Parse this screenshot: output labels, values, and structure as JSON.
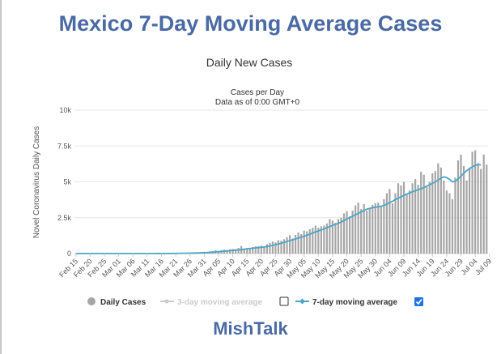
{
  "page": {
    "title": "Mexico 7-Day Moving Average Cases",
    "footer": "MishTalk"
  },
  "colors": {
    "title": "#4a6aa5",
    "bars": "#a6a6a6",
    "line_7day": "#4aa5c8",
    "line_3day": "#cccccc",
    "grid": "#e6e6e6"
  },
  "chart_data": {
    "type": "bar",
    "title": "Daily New Cases",
    "subtitle": "Cases per Day",
    "note": "Data as of 0:00 GMT+0",
    "ylabel": "Novel Coronavirus Daily Cases",
    "ylim": [
      0,
      10000
    ],
    "yticks": [
      0,
      2500,
      5000,
      7500,
      10000
    ],
    "ytick_labels": [
      "0",
      "2.5k",
      "5k",
      "7.5k",
      "10k"
    ],
    "grid": true,
    "legend_position": "bottom",
    "xtick_labels": [
      "Feb 15",
      "Feb 20",
      "Feb 25",
      "Mar 01",
      "Mar 06",
      "Mar 11",
      "Mar 16",
      "Mar 21",
      "Mar 26",
      "Mar 31",
      "Apr 05",
      "Apr 10",
      "Apr 15",
      "Apr 20",
      "Apr 25",
      "Apr 30",
      "May 05",
      "May 10",
      "May 15",
      "May 20",
      "May 25",
      "May 30",
      "Jun 04",
      "Jun 09",
      "Jun 14",
      "Jun 19",
      "Jun 24",
      "Jun 29",
      "Jul 04",
      "Jul 09"
    ],
    "x_start": "Feb 15",
    "x_end": "Jul 12",
    "legend": [
      {
        "label": "Daily Cases",
        "active": true
      },
      {
        "label": "3-day moving average",
        "active": false
      },
      {
        "label": "7-day moving average",
        "active": true
      }
    ],
    "series": [
      {
        "name": "Daily Cases",
        "type": "bar",
        "values": [
          0,
          0,
          0,
          0,
          0,
          0,
          0,
          0,
          0,
          0,
          0,
          0,
          0,
          0,
          0,
          1,
          0,
          1,
          0,
          1,
          0,
          0,
          0,
          0,
          1,
          2,
          1,
          0,
          2,
          5,
          3,
          7,
          12,
          15,
          12,
          26,
          29,
          37,
          29,
          44,
          48,
          52,
          66,
          71,
          88,
          120,
          108,
          155,
          170,
          240,
          180,
          243,
          280,
          243,
          300,
          320,
          310,
          396,
          520,
          350,
          380,
          360,
          450,
          500,
          510,
          560,
          500,
          660,
          750,
          840,
          780,
          930,
          900,
          1000,
          1140,
          1280,
          1050,
          1300,
          1470,
          1360,
          1600,
          1550,
          1700,
          1800,
          1950,
          1800,
          1900,
          1950,
          2100,
          2400,
          2300,
          2150,
          2400,
          2500,
          2800,
          2950,
          2600,
          3000,
          3350,
          3550,
          3100,
          3450,
          3000,
          3150,
          3400,
          3500,
          3550,
          3300,
          3800,
          4200,
          4500,
          3500,
          4200,
          4900,
          4750,
          5000,
          4150,
          4400,
          4900,
          5200,
          4800,
          5700,
          5500,
          4650,
          5000,
          5600,
          5750,
          6300,
          6000,
          5100,
          4400,
          4200,
          3800,
          5300,
          6500,
          6900,
          6100,
          5100,
          6000,
          7100,
          7200,
          6300,
          5900,
          6900,
          6200
        ]
      },
      {
        "name": "7-day moving average",
        "type": "line",
        "values": [
          0,
          0,
          0,
          0,
          0,
          0,
          0,
          0,
          0,
          0,
          0,
          0,
          0,
          0,
          0,
          0,
          0,
          0,
          0,
          0,
          0,
          0,
          0,
          0,
          0,
          1,
          1,
          1,
          1,
          2,
          3,
          4,
          5,
          7,
          9,
          12,
          15,
          19,
          23,
          27,
          30,
          35,
          40,
          45,
          52,
          59,
          69,
          80,
          93,
          110,
          130,
          146,
          163,
          181,
          199,
          216,
          233,
          250,
          272,
          300,
          330,
          355,
          375,
          395,
          415,
          435,
          460,
          490,
          530,
          570,
          620,
          670,
          720,
          780,
          840,
          900,
          960,
          1020,
          1080,
          1140,
          1200,
          1280,
          1350,
          1430,
          1510,
          1580,
          1650,
          1720,
          1800,
          1880,
          1960,
          2030,
          2110,
          2200,
          2300,
          2420,
          2500,
          2600,
          2700,
          2800,
          2900,
          3000,
          3100,
          3150,
          3200,
          3230,
          3260,
          3300,
          3350,
          3450,
          3550,
          3650,
          3760,
          3860,
          3960,
          4050,
          4150,
          4230,
          4300,
          4380,
          4450,
          4520,
          4600,
          4700,
          4800,
          4900,
          5000,
          5120,
          5260,
          5350,
          5300,
          5180,
          5000,
          5050,
          5200,
          5400,
          5600,
          5780,
          5920,
          6050,
          6150,
          6200,
          6180
        ]
      }
    ]
  }
}
